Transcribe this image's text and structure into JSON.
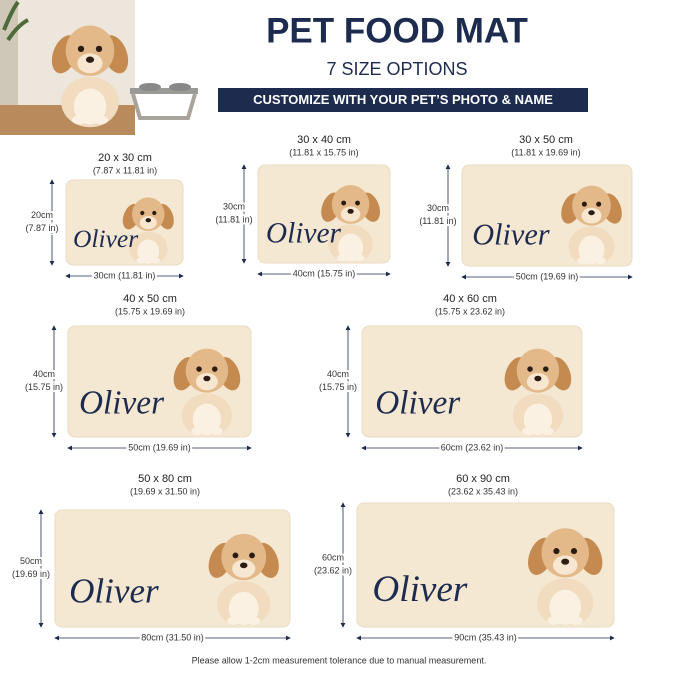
{
  "header": {
    "title": "PET FOOD MAT",
    "subtitle": "7 SIZE OPTIONS",
    "banner": "CUSTOMIZE WITH YOUR PET’S PHOTO & NAME"
  },
  "mats": [
    {
      "size": "20 x 30 cm",
      "size_in": "(7.87 x 11.81 in)",
      "height": "20cm",
      "height_in": "(7.87 in)",
      "width": "30cm (11.81 in)",
      "name": "Oliver"
    },
    {
      "size": "30 x 40 cm",
      "size_in": "(11.81 x 15.75 in)",
      "height": "30cm",
      "height_in": "(11.81 in)",
      "width": "40cm (15.75 in)",
      "name": "Oliver"
    },
    {
      "size": "30 x 50 cm",
      "size_in": "(11.81 x 19.69 in)",
      "height": "30cm",
      "height_in": "(11.81 in)",
      "width": "50cm (19.69 in)",
      "name": "Oliver"
    },
    {
      "size": "40 x 50 cm",
      "size_in": "(15.75 x 19.69 in)",
      "height": "40cm",
      "height_in": "(15.75 in)",
      "width": "50cm (19.69 in)",
      "name": "Oliver"
    },
    {
      "size": "40 x 60 cm",
      "size_in": "(15.75 x 23.62 in)",
      "height": "40cm",
      "height_in": "(15.75 in)",
      "width": "60cm (23.62 in)",
      "name": "Oliver"
    },
    {
      "size": "50 x 80 cm",
      "size_in": "(19.69 x 31.50 in)",
      "height": "50cm",
      "height_in": "(19.69 in)",
      "width": "80cm (31.50 in)",
      "name": "Oliver"
    },
    {
      "size": "60 x 90 cm",
      "size_in": "(23.62 x 35.43 in)",
      "height": "60cm",
      "height_in": "(23.62 in)",
      "width": "90cm (35.43 in)",
      "name": "Oliver"
    }
  ],
  "footer": "Please allow 1-2cm measurement tolerance due to manual measurement."
}
